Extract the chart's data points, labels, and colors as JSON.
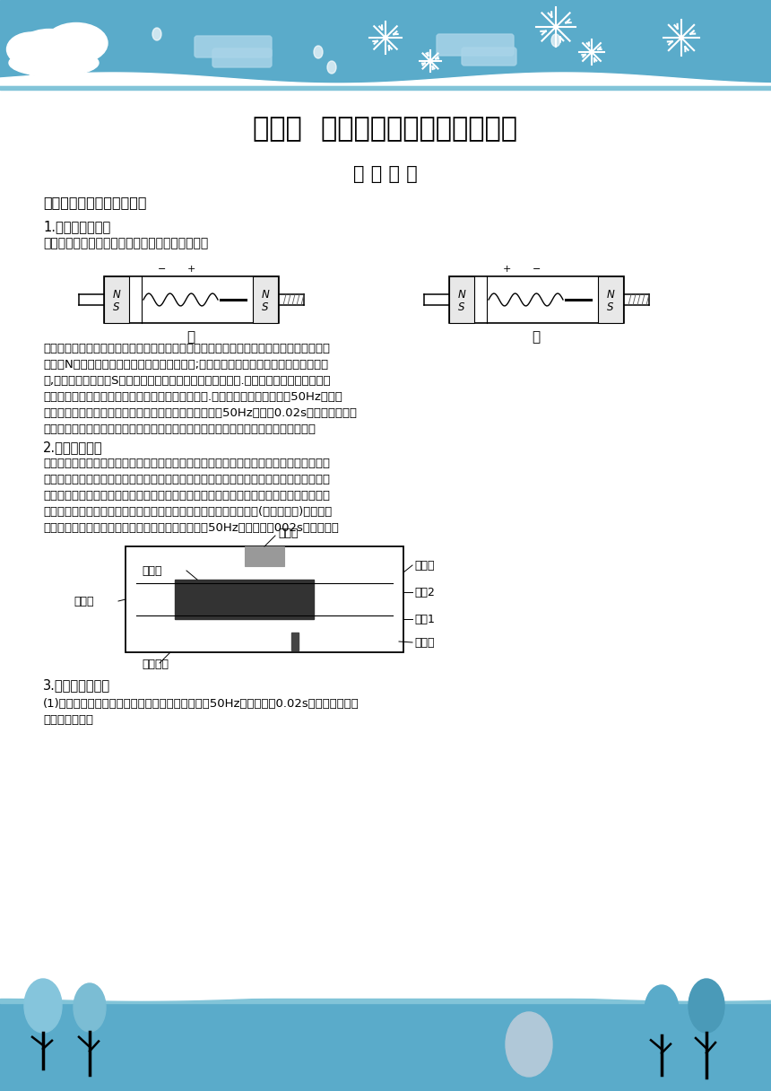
{
  "title": "第四节  实验：用打点计时器测速度",
  "subtitle": "实 验 指 导",
  "section1": "一、打点计时器的工作原理",
  "sub1_1": "1.电磁打点计时器",
  "sub1_1_desc": "电磁打点计时器的工作原理可用下图甲、乙来说明",
  "fig_label_jia": "甲",
  "fig_label_yi": "乙",
  "body_text1_lines": [
    "当线圈中通入的交流电为正半周时，设电流的方向如图甲所示，则线圈中被磁化的钢制簧片",
    "左端为N极，永久磁铁使簧片受到一个向下的力;当交流电转为负半周时，电流的方向如图",
    "乙,所示，簧片左端为S极，永久磁铁使簧片受到一个向上的力.随着交变电流方向的周期性",
    "变化，簧片周期性地受到向下、向上的力就振动起来.制造时使簧片的固有率为50Hz等于交",
    "变电流的频率，这样簧片就振动得最剧烈，振动频率也为50Hz，每隔0.02s就通过复写纸在",
    "运动的纸带上打下一个点，通过纸带上留下的一行小点，我们就能了解物体的运动情况"
  ],
  "sub1_2": "2.电火花计时器",
  "sub1_2_lines": [
    "电火花计时器的原理与电磁打点计时器相同，不过在纸带上打点的不是振针和复写纸，而是",
    "电火花和墨粉，它是利用火花放电在纸带上打出小孔而显示出点迹的。使用时，墨粉纸盘套",
    "在纸盘轴上，把纸带穿过限位孔，并夹在两条纸带之间当接通电源、按下脉冲输出开关时，",
    "计时器发出的脉冲电流经放电针、墨粉纸盘到纸盘轴，产生火花放电(如下图所示)，于是在",
    "运动着的纸带上就打出了一列点迹，当电源的频率为50Hz时，它每隔002s打一个点。"
  ],
  "sub1_3": "3.两种计时器比较",
  "sub1_3_lines": [
    "(1)两种计时器使用的都是交流电源，当电源频率为50Hz时，都每隔0.02s打一个点，但两",
    "者使用的工作电"
  ],
  "bg_color": "#5aabca",
  "stripe_color": "#82c4d8",
  "page_bg": "#ffffff",
  "cloud_rect_color": "#a8d4e8",
  "gray_oval_color": "#b0c8d8",
  "tree_colors": [
    "#85c5dc",
    "#7bbdd4",
    "#5aabca",
    "#4a9ab8"
  ]
}
